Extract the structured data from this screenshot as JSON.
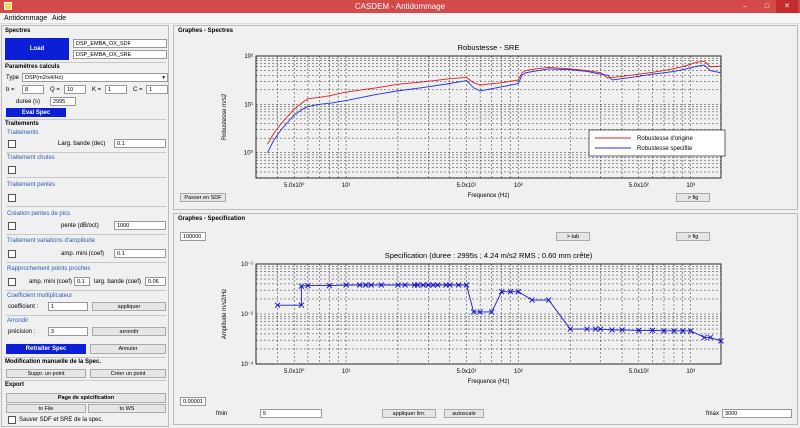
{
  "window": {
    "title": "CASDEM - Antidommage",
    "min": "–",
    "max": "□",
    "close": "✕"
  },
  "menu": [
    "Antidommage",
    "Aide"
  ],
  "left": {
    "spectres": {
      "title": "Spectres",
      "load": "Load",
      "sdf": "DSP_EMBA_OX_SDF",
      "sre": "DSP_EMBA_OX_SRE"
    },
    "params": {
      "title": "Paramètres calculs",
      "type_label": "Type",
      "type_value": "DSP(m2/s4/Hz)",
      "b_label": "b =",
      "b": "8",
      "q_label": "Q =",
      "q": "10",
      "k_label": "K =",
      "k": "1",
      "c_label": "C =",
      "c": "1",
      "duree_label": "duree (s)",
      "duree": "2995",
      "eval": "Eval Spec"
    },
    "traitements": {
      "title": "Traitements",
      "t1": {
        "title": "Traitements",
        "label": "Larg. bande (dec)",
        "value": "0.1"
      },
      "t2": {
        "title": "Traitement chutes"
      },
      "t3": {
        "title": "Traitement pentes"
      },
      "t4": {
        "title": "Création pentes de pics",
        "label": "pente (dB/oct)",
        "value": "1000"
      },
      "t5": {
        "title": "Traitement variations d'amplitude",
        "label": "amp. mini (coef)",
        "value": "0.1"
      },
      "t6": {
        "title": "Rapprochement points proches",
        "label1": "amp. mini (coef)",
        "value1": "0.1",
        "label2": "larg. bande (coef)",
        "value2": "0.06"
      },
      "t7": {
        "title": "Coefficient multiplicateur",
        "label": "coefficient :",
        "value": "1",
        "btn": "appliquer"
      },
      "t8": {
        "title": "Arrondir",
        "label": "précision :",
        "value": "3",
        "btn": "arrondir"
      },
      "retraiter": "Retraiter Spec",
      "annuler": "Annuler"
    },
    "modif": {
      "title": "Modification manuelle de la Spec.",
      "suppr": "Suppr. un point",
      "creer": "Créer un point"
    },
    "export": {
      "title": "Export",
      "page": "Page de spécification",
      "file": "to File",
      "ws": "to WS",
      "save": "Sauver SDF et SRE de la spec."
    }
  },
  "graph1": {
    "group": "Graphes - Spectres",
    "btn_sdf": "Passer en SDF",
    "btn_fig": "> fig",
    "chart_data": {
      "type": "line",
      "title": "Robustesse - SRE",
      "xlabel": "Frequence (Hz)",
      "ylabel": "Robustesse m/s2",
      "xscale": "log",
      "yscale": "log",
      "xlim": [
        3,
        1500
      ],
      "ylim": [
        0.3,
        100
      ],
      "grid": true,
      "legend_position": "bottom-right",
      "x_ticks": [
        "5.0x10⁰",
        "10¹",
        "5.0x10¹",
        "10²",
        "5.0x10²",
        "10³"
      ],
      "y_ticks": [
        "10²",
        "10¹",
        "10⁰"
      ],
      "series": [
        {
          "name": "Robustesse d'origine",
          "color": "#e02020",
          "x": [
            3.5,
            3.8,
            4.2,
            5,
            5.6,
            6,
            7,
            8,
            10,
            15,
            20,
            30,
            40,
            50,
            55,
            60,
            65,
            80,
            100,
            105,
            110,
            130,
            150,
            200,
            250,
            300,
            330,
            350,
            400,
            500,
            600,
            700,
            800,
            900,
            1000,
            1100,
            1200,
            1300,
            1500
          ],
          "y": [
            1.5,
            2.5,
            4,
            8,
            11,
            13,
            14,
            15,
            18,
            22,
            26,
            30,
            34,
            36,
            28,
            25,
            26,
            28,
            32,
            45,
            50,
            55,
            58,
            54,
            50,
            45,
            35,
            36,
            38,
            42,
            46,
            50,
            55,
            60,
            68,
            75,
            78,
            60,
            62
          ]
        },
        {
          "name": "Robustesse specifite",
          "color": "#2030e0",
          "x": [
            3.5,
            3.8,
            4.2,
            5,
            5.6,
            6,
            7,
            8,
            10,
            15,
            20,
            30,
            40,
            50,
            55,
            60,
            65,
            80,
            100,
            105,
            110,
            130,
            150,
            200,
            250,
            300,
            330,
            350,
            400,
            500,
            600,
            700,
            800,
            900,
            1000,
            1100,
            1200,
            1300,
            1500
          ],
          "y": [
            1,
            1.8,
            3,
            6,
            8,
            9,
            10,
            10.5,
            12,
            16,
            19,
            23,
            27,
            31,
            22,
            19,
            20,
            23,
            27,
            40,
            45,
            50,
            54,
            52,
            48,
            42,
            40,
            32,
            34,
            38,
            42,
            45,
            48,
            52,
            57,
            62,
            65,
            50,
            45
          ]
        }
      ]
    }
  },
  "graph2": {
    "group": "Graphes - Specification",
    "val_top": "100000",
    "btn_tab": "> tab",
    "btn_fig": "> fig",
    "val_bottom": "0.00001",
    "fmin_label": "fmin",
    "fmin": "5",
    "appliquer": "appliquer lim.",
    "autoscale": "autoscale",
    "fmax_label": "fmax",
    "fmax": "3000",
    "chart_data": {
      "type": "line",
      "title": "Specification (duree : 2995s ;    4.24 m/s2 RMS ;    0.60 mm crête)",
      "xlabel": "Frequence (Hz)",
      "ylabel": "Amplitude m/s2/Hz",
      "xscale": "log",
      "yscale": "log",
      "xlim": [
        3,
        1500
      ],
      "ylim": [
        0.001,
        0.1
      ],
      "grid": true,
      "x_ticks": [
        "5.0x10⁰",
        "10¹",
        "5.0x10¹",
        "10²",
        "5.0x10²",
        "10³"
      ],
      "y_ticks": [
        "10⁻¹",
        "10⁻²",
        "10⁻³"
      ],
      "series": [
        {
          "name": "",
          "color": "#1a1acc",
          "x": [
            4,
            5.5,
            5.5,
            6,
            8,
            10,
            12,
            13,
            14,
            16,
            20,
            22,
            25,
            26,
            28,
            30,
            32,
            34,
            38,
            40,
            45,
            50,
            55,
            60,
            70,
            80,
            90,
            100,
            120,
            150,
            200,
            250,
            280,
            300,
            350,
            400,
            500,
            600,
            700,
            800,
            900,
            1000,
            1200,
            1300,
            1500
          ],
          "y": [
            0.015,
            0.015,
            0.036,
            0.037,
            0.037,
            0.038,
            0.038,
            0.038,
            0.038,
            0.038,
            0.038,
            0.038,
            0.038,
            0.038,
            0.038,
            0.038,
            0.038,
            0.038,
            0.038,
            0.038,
            0.038,
            0.038,
            0.011,
            0.011,
            0.011,
            0.028,
            0.028,
            0.028,
            0.019,
            0.019,
            0.005,
            0.005,
            0.005,
            0.005,
            0.0048,
            0.0048,
            0.0047,
            0.0047,
            0.0046,
            0.0046,
            0.0046,
            0.0046,
            0.0034,
            0.0034,
            0.0029
          ]
        }
      ]
    }
  }
}
